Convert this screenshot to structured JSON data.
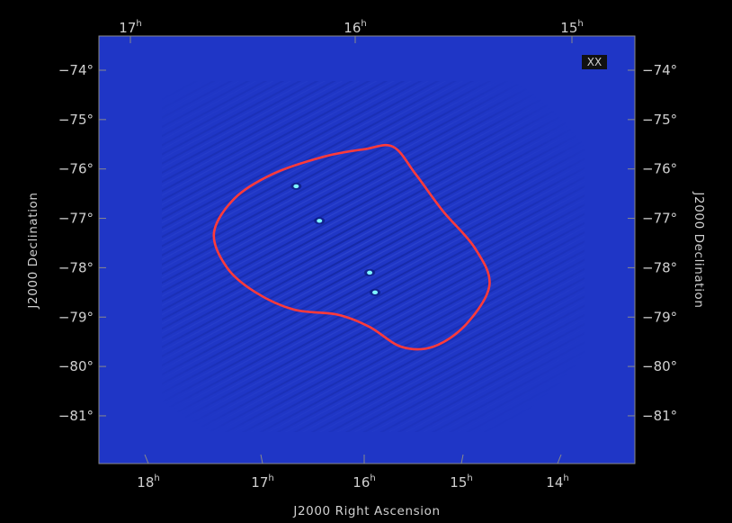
{
  "chart_data": {
    "type": "heatmap",
    "title": "",
    "polarization_label": "XX",
    "xlabel": "J2000 Right Ascension",
    "ylabel_left": "J2000 Declination",
    "ylabel_right": "J2000 Declination",
    "dec_ticks": [
      {
        "value": -74,
        "label": "−74°"
      },
      {
        "value": -75,
        "label": "−75°"
      },
      {
        "value": -76,
        "label": "−76°"
      },
      {
        "value": -77,
        "label": "−77°"
      },
      {
        "value": -78,
        "label": "−78°"
      },
      {
        "value": -79,
        "label": "−79°"
      },
      {
        "value": -80,
        "label": "−80°"
      },
      {
        "value": -81,
        "label": "−81°"
      }
    ],
    "ra_ticks_bottom": [
      {
        "value": 18,
        "base": "18",
        "unit": "h"
      },
      {
        "value": 17,
        "base": "17",
        "unit": "h"
      },
      {
        "value": 16,
        "base": "16",
        "unit": "h"
      },
      {
        "value": 15,
        "base": "15",
        "unit": "h"
      },
      {
        "value": 14,
        "base": "14",
        "unit": "h"
      }
    ],
    "ra_ticks_top": [
      {
        "value": 17,
        "base": "17",
        "unit": "h"
      },
      {
        "value": 16,
        "base": "16",
        "unit": "h"
      },
      {
        "value": 15,
        "base": "15",
        "unit": "h"
      }
    ],
    "contour_color": "#ff3a3a",
    "background_color": "#1f36c6",
    "contour_dec_ra": [
      [
        -75.55,
        15.75
      ],
      [
        -75.6,
        16.0
      ],
      [
        -75.75,
        16.35
      ],
      [
        -76.1,
        16.8
      ],
      [
        -76.6,
        17.15
      ],
      [
        -77.3,
        17.35
      ],
      [
        -78.0,
        17.25
      ],
      [
        -78.5,
        17.0
      ],
      [
        -78.85,
        16.65
      ],
      [
        -78.95,
        16.25
      ],
      [
        -79.2,
        15.95
      ],
      [
        -79.6,
        15.65
      ],
      [
        -79.6,
        15.35
      ],
      [
        -79.15,
        15.05
      ],
      [
        -78.35,
        14.85
      ],
      [
        -77.6,
        15.0
      ],
      [
        -76.85,
        15.3
      ],
      [
        -76.1,
        15.55
      ],
      [
        -75.55,
        15.75
      ]
    ],
    "bright_sources": [
      {
        "ra": 15.95,
        "dec": -78.1
      },
      {
        "ra": 15.9,
        "dec": -78.5
      },
      {
        "ra": 16.6,
        "dec": -76.35
      },
      {
        "ra": 16.4,
        "dec": -77.05
      }
    ]
  }
}
